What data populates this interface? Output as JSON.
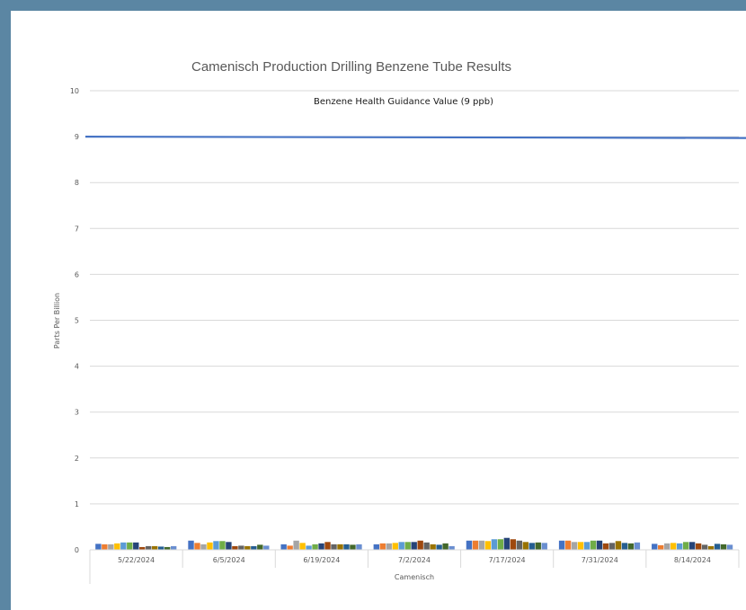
{
  "chart_data": {
    "type": "bar",
    "title": "Camenisch Production Drilling Benzene Tube Results",
    "xlabel": "Camenisch",
    "ylabel": "Parts Per Billion",
    "ylim": [
      0,
      10
    ],
    "yticks": [
      "0",
      "1",
      "2",
      "3",
      "4",
      "5",
      "6",
      "7",
      "8",
      "9",
      "10"
    ],
    "grid": true,
    "categories": [
      "5/22/2024",
      "6/5/2024",
      "6/19/2024",
      "7/2/2024",
      "7/17/2024",
      "7/31/2024",
      "8/14/2024"
    ],
    "series_colors": [
      "#4472c4",
      "#ed7d31",
      "#a5a5a5",
      "#ffc000",
      "#5b9bd5",
      "#70ad47",
      "#264478",
      "#9e480e",
      "#636363",
      "#997300",
      "#255e91",
      "#43682b",
      "#698ed0"
    ],
    "values": [
      [
        0.13,
        0.12,
        0.12,
        0.14,
        0.16,
        0.16,
        0.16,
        0.06,
        0.08,
        0.08,
        0.07,
        0.06,
        0.08
      ],
      [
        0.2,
        0.15,
        0.12,
        0.16,
        0.19,
        0.19,
        0.17,
        0.08,
        0.09,
        0.08,
        0.08,
        0.11,
        0.09
      ],
      [
        0.12,
        0.09,
        0.2,
        0.15,
        0.09,
        0.12,
        0.14,
        0.17,
        0.12,
        0.12,
        0.12,
        0.11,
        0.12
      ],
      [
        0.12,
        0.14,
        0.14,
        0.15,
        0.17,
        0.17,
        0.17,
        0.2,
        0.16,
        0.12,
        0.11,
        0.14,
        0.08
      ],
      [
        0.2,
        0.2,
        0.2,
        0.19,
        0.23,
        0.23,
        0.26,
        0.23,
        0.2,
        0.17,
        0.15,
        0.16,
        0.15
      ],
      [
        0.2,
        0.2,
        0.17,
        0.17,
        0.17,
        0.2,
        0.2,
        0.14,
        0.15,
        0.19,
        0.15,
        0.14,
        0.16
      ],
      [
        0.13,
        0.1,
        0.14,
        0.15,
        0.14,
        0.17,
        0.17,
        0.14,
        0.11,
        0.08,
        0.13,
        0.12,
        0.11
      ]
    ],
    "reference_line": {
      "label": "Benzene Health Guidance Value (9 ppb)",
      "value": 9,
      "color": "#4472c4"
    }
  }
}
